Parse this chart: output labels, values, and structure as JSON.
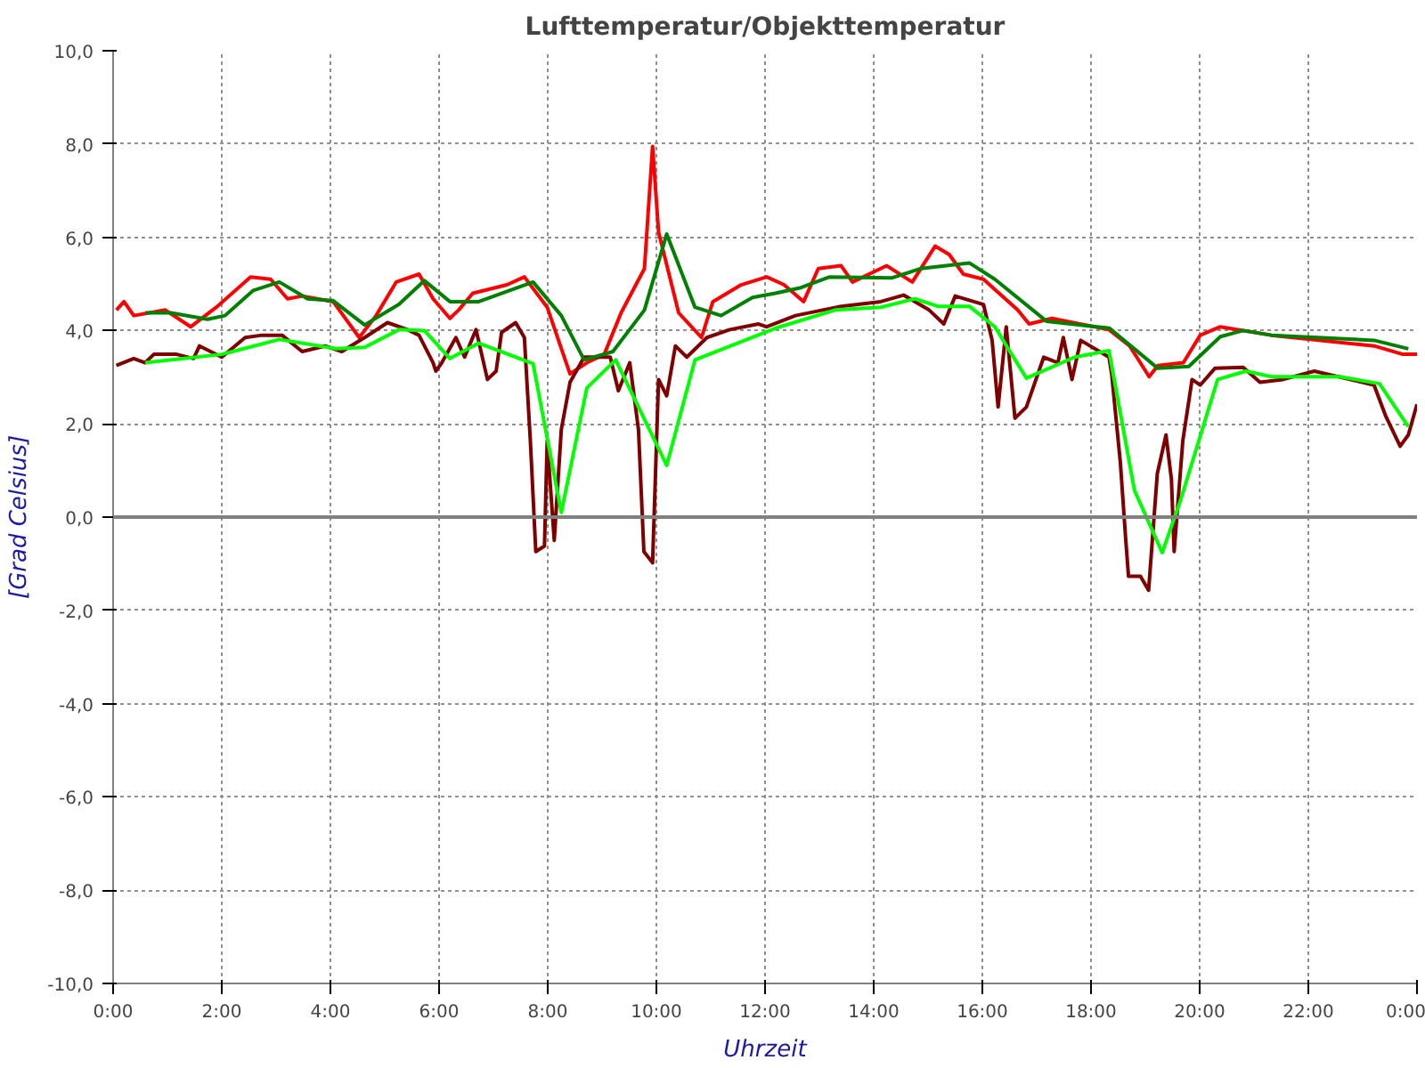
{
  "chart_data": {
    "type": "line",
    "title": "Lufttemperatur/Objekttemperatur",
    "xlabel": "Uhrzeit",
    "ylabel": "[Grad Celsius]",
    "xlim": [
      0,
      24
    ],
    "ylim": [
      -10,
      10
    ],
    "xticks": [
      {
        "value": 0,
        "label": "0:00"
      },
      {
        "value": 2,
        "label": "2:00"
      },
      {
        "value": 4,
        "label": "4:00"
      },
      {
        "value": 6,
        "label": "6:00"
      },
      {
        "value": 8,
        "label": "8:00"
      },
      {
        "value": 10,
        "label": "10:00"
      },
      {
        "value": 12,
        "label": "12:00"
      },
      {
        "value": 14,
        "label": "14:00"
      },
      {
        "value": 16,
        "label": "16:00"
      },
      {
        "value": 18,
        "label": "18:00"
      },
      {
        "value": 20,
        "label": "20:00"
      },
      {
        "value": 22,
        "label": "22:00"
      },
      {
        "value": 24,
        "label": "0:00"
      }
    ],
    "yticks": [
      {
        "value": -10,
        "label": "-10,0"
      },
      {
        "value": -8,
        "label": "-8,0"
      },
      {
        "value": -6,
        "label": "-6,0"
      },
      {
        "value": -4,
        "label": "-4,0"
      },
      {
        "value": -2,
        "label": "-2,0"
      },
      {
        "value": 0,
        "label": "0,0"
      },
      {
        "value": 2,
        "label": "2,0"
      },
      {
        "value": 4,
        "label": "4,0"
      },
      {
        "value": 6,
        "label": "6,0"
      },
      {
        "value": 8,
        "label": "8,0"
      },
      {
        "value": 10,
        "label": "10,0"
      }
    ],
    "grid": true,
    "line_style": "solid",
    "ref_lines": [
      {
        "axis": "y",
        "value": 0,
        "color": "#808080"
      }
    ],
    "series": [
      {
        "color": "#ff0000",
        "x": [
          0.06,
          0.2,
          0.38,
          0.96,
          1.43,
          1.9,
          2.53,
          2.9,
          3.21,
          3.48,
          4.05,
          4.53,
          4.84,
          5.21,
          5.63,
          5.89,
          6.2,
          6.36,
          6.62,
          7.25,
          7.57,
          7.99,
          8.41,
          8.72,
          9.04,
          9.35,
          9.78,
          9.93,
          10.04,
          10.41,
          10.83,
          11.04,
          11.56,
          12.03,
          12.35,
          12.71,
          12.98,
          13.4,
          13.61,
          14.24,
          14.71,
          15.13,
          15.39,
          15.65,
          16.02,
          16.65,
          16.86,
          17.28,
          18.33,
          18.71,
          19.07,
          19.23,
          19.7,
          20.01,
          20.38,
          21.32,
          23.21,
          23.74,
          24.0
        ],
        "values": [
          4.44,
          4.62,
          4.32,
          4.44,
          4.08,
          4.5,
          5.15,
          5.1,
          4.68,
          4.74,
          4.62,
          3.85,
          4.32,
          5.04,
          5.21,
          4.68,
          4.26,
          4.44,
          4.8,
          4.98,
          5.15,
          4.5,
          3.07,
          3.31,
          3.49,
          4.38,
          5.33,
          7.95,
          6.11,
          4.38,
          3.85,
          4.62,
          4.98,
          5.15,
          4.98,
          4.62,
          5.33,
          5.39,
          5.04,
          5.39,
          5.04,
          5.81,
          5.63,
          5.21,
          5.1,
          4.44,
          4.14,
          4.26,
          4.02,
          3.67,
          3.01,
          3.25,
          3.31,
          3.9,
          4.08,
          3.9,
          3.67,
          3.49,
          3.49
        ]
      },
      {
        "color": "#800000",
        "x": [
          0.06,
          0.38,
          0.59,
          0.75,
          1.17,
          1.48,
          1.59,
          2.0,
          2.43,
          2.74,
          3.11,
          3.48,
          3.9,
          4.21,
          4.63,
          5.05,
          5.42,
          5.63,
          5.89,
          5.94,
          6.05,
          6.31,
          6.47,
          6.68,
          6.89,
          7.05,
          7.15,
          7.41,
          7.57,
          7.68,
          7.78,
          7.94,
          7.99,
          8.12,
          8.25,
          8.41,
          8.67,
          9.15,
          9.3,
          9.51,
          9.67,
          9.77,
          9.93,
          10.04,
          10.19,
          10.35,
          10.56,
          10.93,
          11.35,
          11.88,
          12.03,
          12.56,
          13.4,
          14.13,
          14.55,
          15.02,
          15.29,
          15.5,
          16.02,
          16.18,
          16.29,
          16.44,
          16.6,
          16.81,
          17.13,
          17.39,
          17.49,
          17.65,
          17.81,
          18.33,
          18.38,
          18.54,
          18.64,
          18.69,
          18.91,
          19.06,
          19.22,
          19.38,
          19.48,
          19.53,
          19.69,
          19.86,
          20.01,
          20.28,
          20.8,
          21.11,
          21.53,
          22.11,
          23.21,
          23.42,
          23.69,
          23.84,
          24.0
        ],
        "values": [
          3.25,
          3.4,
          3.31,
          3.49,
          3.49,
          3.4,
          3.67,
          3.43,
          3.85,
          3.9,
          3.9,
          3.55,
          3.67,
          3.55,
          3.85,
          4.17,
          4.02,
          3.9,
          3.31,
          3.13,
          3.31,
          3.85,
          3.43,
          4.02,
          2.95,
          3.13,
          3.96,
          4.17,
          3.85,
          1.64,
          -0.74,
          -0.62,
          1.64,
          -0.5,
          1.88,
          2.89,
          3.43,
          3.43,
          2.71,
          3.31,
          1.88,
          -0.74,
          -0.98,
          2.95,
          2.6,
          3.67,
          3.43,
          3.85,
          4.02,
          4.14,
          4.08,
          4.32,
          4.52,
          4.62,
          4.76,
          4.44,
          4.14,
          4.74,
          4.56,
          3.79,
          2.36,
          4.08,
          2.12,
          2.36,
          3.43,
          3.31,
          3.85,
          2.95,
          3.79,
          3.43,
          3.07,
          1.17,
          -0.5,
          -1.27,
          -1.27,
          -1.57,
          0.93,
          1.76,
          0.81,
          -0.74,
          1.64,
          2.95,
          2.83,
          3.19,
          3.21,
          2.89,
          2.95,
          3.13,
          2.83,
          2.18,
          1.52,
          1.76,
          2.42
        ]
      },
      {
        "color": "#008000",
        "x": [
          0.59,
          1.06,
          1.74,
          2.06,
          2.58,
          3.06,
          3.58,
          4.05,
          4.63,
          5.26,
          5.73,
          6.2,
          6.73,
          7.73,
          8.25,
          8.67,
          9.2,
          9.78,
          10.19,
          10.71,
          11.19,
          11.77,
          12.19,
          12.66,
          13.19,
          14.34,
          14.87,
          15.76,
          16.23,
          17.18,
          18.34,
          19.23,
          19.8,
          20.38,
          20.8,
          21.32,
          23.21,
          23.84
        ],
        "values": [
          4.38,
          4.38,
          4.24,
          4.32,
          4.86,
          5.04,
          4.68,
          4.64,
          4.12,
          4.56,
          5.07,
          4.62,
          4.62,
          5.04,
          4.32,
          3.37,
          3.55,
          4.44,
          6.07,
          4.5,
          4.32,
          4.71,
          4.8,
          4.92,
          5.15,
          5.13,
          5.33,
          5.45,
          5.1,
          4.2,
          4.05,
          3.19,
          3.23,
          3.87,
          4.0,
          3.9,
          3.79,
          3.61
        ]
      },
      {
        "color": "#00ff00",
        "x": [
          0.59,
          2.0,
          3.06,
          4.1,
          4.63,
          5.26,
          5.73,
          6.2,
          6.73,
          7.73,
          8.25,
          8.72,
          9.25,
          10.19,
          10.71,
          12.19,
          13.29,
          14.13,
          14.76,
          15.18,
          15.76,
          16.23,
          16.81,
          17.7,
          18.33,
          18.8,
          19.31,
          19.64,
          20.33,
          20.85,
          21.32,
          22.58,
          23.31,
          23.84
        ],
        "values": [
          3.31,
          3.49,
          3.81,
          3.61,
          3.64,
          4.02,
          4.0,
          3.4,
          3.73,
          3.29,
          0.1,
          2.77,
          3.37,
          1.11,
          3.37,
          4.05,
          4.44,
          4.5,
          4.68,
          4.52,
          4.52,
          4.08,
          2.98,
          3.43,
          3.57,
          0.57,
          -0.76,
          0.33,
          2.95,
          3.13,
          3.01,
          3.01,
          2.86,
          1.94
        ]
      }
    ]
  }
}
